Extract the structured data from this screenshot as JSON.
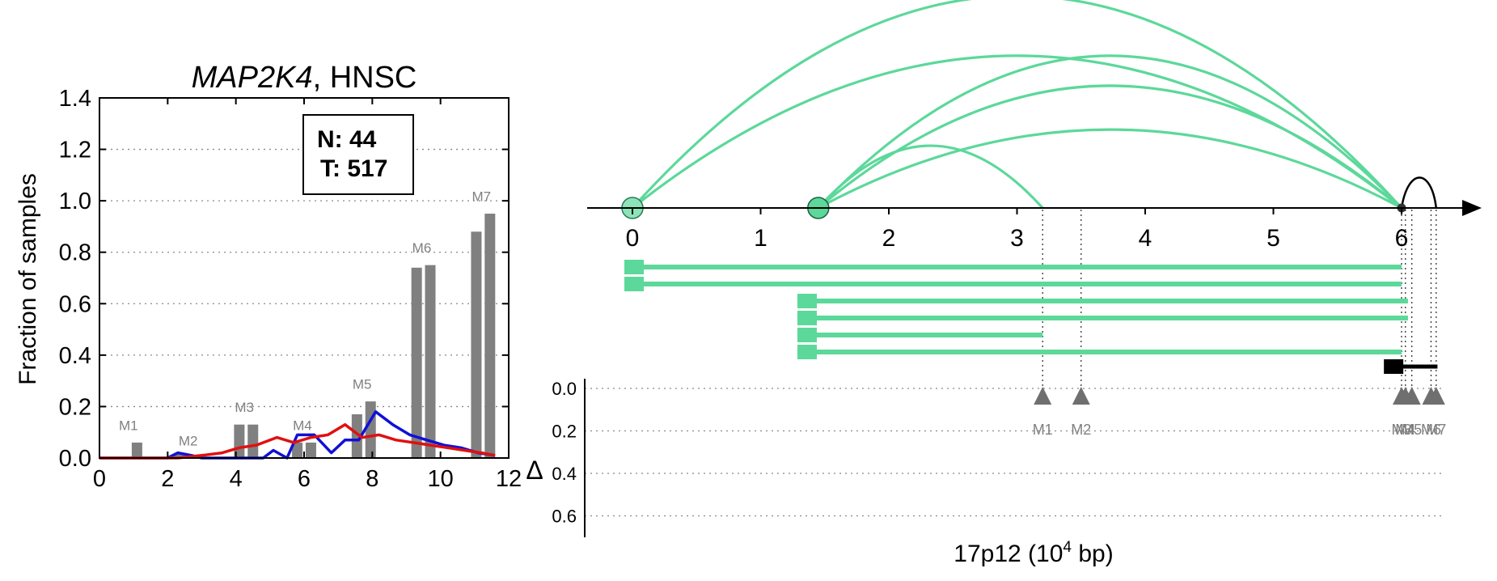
{
  "chart_data": [
    {
      "type": "bar",
      "title_gene": "MAP2K4",
      "title_rest": ", HNSC",
      "xlabel": "",
      "ylabel": "Fraction of samples",
      "xlim": [
        0,
        12
      ],
      "ylim": [
        0,
        1.4
      ],
      "x_ticks": [
        "0",
        "2",
        "4",
        "6",
        "8",
        "10",
        "12"
      ],
      "y_ticks": [
        "0.0",
        "0.2",
        "0.4",
        "0.6",
        "0.8",
        "1.0",
        "1.2",
        "1.4"
      ],
      "grid": "horizontal dotted",
      "legend": {
        "n_label": "N: 44",
        "t_label": "T: 517"
      },
      "bars": [
        {
          "x": 1.1,
          "y": 0.06
        },
        {
          "x": 2.35,
          "y": 0.02
        },
        {
          "x": 4.1,
          "y": 0.13
        },
        {
          "x": 4.5,
          "y": 0.13
        },
        {
          "x": 5.8,
          "y": 0.06
        },
        {
          "x": 6.2,
          "y": 0.06
        },
        {
          "x": 7.55,
          "y": 0.17
        },
        {
          "x": 7.95,
          "y": 0.22
        },
        {
          "x": 9.3,
          "y": 0.74
        },
        {
          "x": 9.7,
          "y": 0.75
        },
        {
          "x": 11.05,
          "y": 0.88
        },
        {
          "x": 11.45,
          "y": 0.95
        }
      ],
      "bar_labels": [
        {
          "text": "M1",
          "x": 0.85,
          "y": 0.09
        },
        {
          "text": "M2",
          "x": 2.6,
          "y": 0.03
        },
        {
          "text": "M3",
          "x": 4.25,
          "y": 0.16
        },
        {
          "text": "M4",
          "x": 5.95,
          "y": 0.09
        },
        {
          "text": "M5",
          "x": 7.7,
          "y": 0.25
        },
        {
          "text": "M6",
          "x": 9.45,
          "y": 0.78
        },
        {
          "text": "M7",
          "x": 11.2,
          "y": 0.98
        }
      ],
      "series": [
        {
          "color": "#1010d8",
          "x": [
            0,
            2,
            2.3,
            2.7,
            3.0,
            3.5,
            4.0,
            4.2,
            4.5,
            4.8,
            5.1,
            5.5,
            5.8,
            6.3,
            6.8,
            7.2,
            7.6,
            8.1,
            8.6,
            9.1,
            9.6,
            10.1,
            10.6,
            11.1,
            11.6
          ],
          "y": [
            0,
            0,
            0.02,
            0.01,
            0,
            0,
            0,
            0,
            0,
            0,
            0.03,
            0,
            0.09,
            0.09,
            0.02,
            0.07,
            0.07,
            0.18,
            0.13,
            0.09,
            0.07,
            0.05,
            0.04,
            0.02,
            0.01
          ]
        },
        {
          "color": "#e01010",
          "x": [
            0,
            2.3,
            3.0,
            3.6,
            4.1,
            4.6,
            5.2,
            5.7,
            6.2,
            6.7,
            7.2,
            7.7,
            8.2,
            8.7,
            9.2,
            9.7,
            10.2,
            10.7,
            11.2,
            11.6
          ],
          "y": [
            0,
            0,
            0.01,
            0.02,
            0.04,
            0.05,
            0.08,
            0.06,
            0.08,
            0.09,
            0.13,
            0.08,
            0.09,
            0.07,
            0.06,
            0.05,
            0.04,
            0.03,
            0.02,
            0.01
          ]
        }
      ]
    },
    {
      "type": "arc",
      "xlabel_main": "17p12 (10",
      "xlabel_sup": "4",
      "xlabel_end": " bp)",
      "ylabel": "Δ",
      "x_ticks": [
        "0",
        "1",
        "2",
        "3",
        "4",
        "5",
        "6"
      ],
      "delta_ticks": [
        "0.0",
        "0.2",
        "0.4",
        "0.6"
      ],
      "arc_color": "#5cd89a",
      "nodes": [
        0,
        1.45
      ],
      "target_x": 6.0,
      "arcs": [
        {
          "from": 0,
          "to": 6.0,
          "height": 0.92
        },
        {
          "from": 0,
          "to": 6.0,
          "height": 0.66
        },
        {
          "from": 1.45,
          "to": 6.0,
          "height": 0.66
        },
        {
          "from": 1.45,
          "to": 6.0,
          "height": 0.53
        },
        {
          "from": 1.45,
          "to": 6.0,
          "height": 0.34
        },
        {
          "from": 1.45,
          "to": 3.2,
          "height": 0.27
        }
      ],
      "segments": [
        {
          "start": 0,
          "end": 6.0
        },
        {
          "start": 0,
          "end": 6.0
        },
        {
          "start": 1.35,
          "end": 6.05
        },
        {
          "start": 1.35,
          "end": 6.05
        },
        {
          "start": 1.35,
          "end": 3.2
        },
        {
          "start": 1.35,
          "end": 6.0
        }
      ],
      "black_feature": {
        "start": 5.9,
        "end": 6.28
      },
      "markers": [
        {
          "name": "M1",
          "x": 3.2,
          "delta": 0.0
        },
        {
          "name": "M2",
          "x": 3.5,
          "delta": 0.0
        },
        {
          "name": "M3",
          "x": 6.0,
          "delta": 0.0
        },
        {
          "name": "M4",
          "x": 6.03,
          "delta": 0.0
        },
        {
          "name": "M5",
          "x": 6.08,
          "delta": 0.0
        },
        {
          "name": "M6",
          "x": 6.23,
          "delta": 0.0
        },
        {
          "name": "M7",
          "x": 6.27,
          "delta": 0.0
        }
      ]
    }
  ]
}
